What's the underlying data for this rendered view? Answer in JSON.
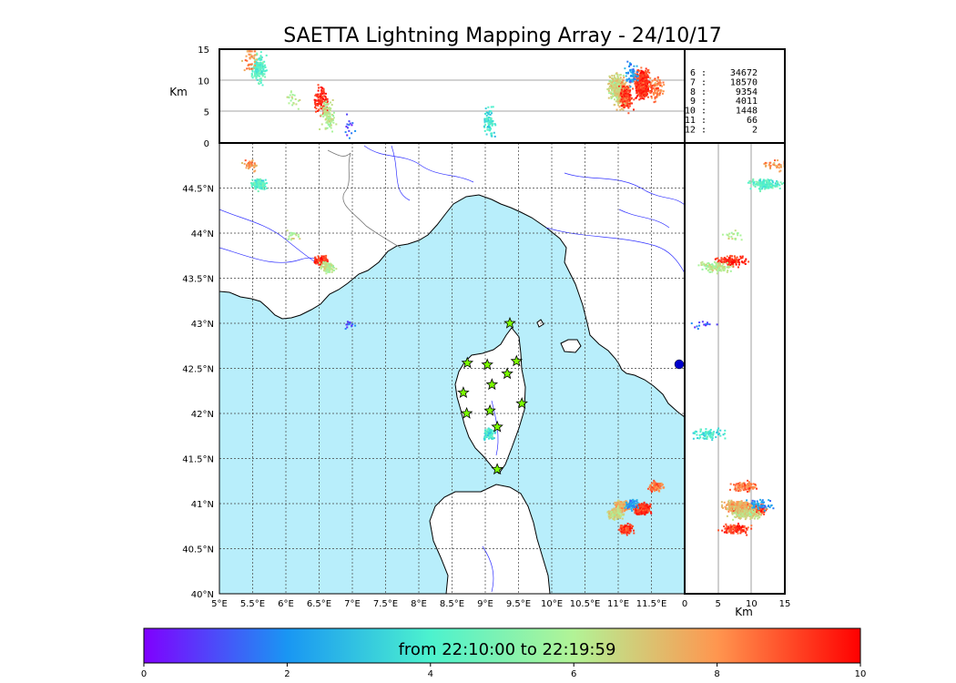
{
  "chart_data": {
    "type": "scatter",
    "title": "SAETTA Lightning Mapping Array - 24/10/17",
    "map": {
      "lon_ticks": [
        "5°E",
        "5.5°E",
        "6°E",
        "6.5°E",
        "7°E",
        "7.5°E",
        "8°E",
        "8.5°E",
        "9°E",
        "9.5°E",
        "10°E",
        "10.5°E",
        "11°E",
        "11.5°E"
      ],
      "lat_ticks": [
        "40°N",
        "40.5°N",
        "41°N",
        "41.5°N",
        "42°N",
        "42.5°N",
        "43°N",
        "43.5°N",
        "44°N",
        "44.5°N"
      ],
      "xlim": [
        5,
        12
      ],
      "ylim": [
        40,
        45
      ],
      "stations": [
        {
          "lon": 9.37,
          "lat": 43.0
        },
        {
          "lon": 8.73,
          "lat": 42.56
        },
        {
          "lon": 9.03,
          "lat": 42.54
        },
        {
          "lon": 9.47,
          "lat": 42.58
        },
        {
          "lon": 9.33,
          "lat": 42.44
        },
        {
          "lon": 9.1,
          "lat": 42.32
        },
        {
          "lon": 8.67,
          "lat": 42.23
        },
        {
          "lon": 9.55,
          "lat": 42.11
        },
        {
          "lon": 9.07,
          "lat": 42.03
        },
        {
          "lon": 8.72,
          "lat": 42.0
        },
        {
          "lon": 9.18,
          "lat": 41.85
        },
        {
          "lon": 9.18,
          "lat": 41.38
        }
      ]
    },
    "top_panel": {
      "ylabel": "Km",
      "yticks": [
        "15",
        "10",
        "5",
        "0"
      ],
      "ylim": [
        0,
        15
      ]
    },
    "side_panel": {
      "xlabel": "Km",
      "xticks": [
        "0",
        "5",
        "10",
        "15"
      ],
      "xlim": [
        0,
        15
      ]
    },
    "station_counts": [
      {
        "stations": "6",
        "count": "34672",
        "highlight": false
      },
      {
        "stations": "7",
        "count": "18570",
        "highlight": true
      },
      {
        "stations": "8",
        "count": "9354",
        "highlight": false
      },
      {
        "stations": "9",
        "count": "4011",
        "highlight": false
      },
      {
        "stations": "10",
        "count": "1448",
        "highlight": false
      },
      {
        "stations": "11",
        "count": "66",
        "highlight": false
      },
      {
        "stations": "12",
        "count": "2",
        "highlight": false
      }
    ],
    "colorbar": {
      "label": "from 22:10:00 to 22:19:59",
      "ticks": [
        "0",
        "2",
        "4",
        "6",
        "8",
        "10"
      ],
      "range": [
        0,
        10
      ]
    },
    "clusters": [
      {
        "lon": 5.58,
        "lat": 44.55,
        "alt": 12,
        "t": 4.3,
        "n": 170
      },
      {
        "lon": 5.45,
        "lat": 44.76,
        "alt": 13.5,
        "t": 7.8,
        "n": 45
      },
      {
        "lon": 6.07,
        "lat": 43.98,
        "alt": 7,
        "t": 6,
        "n": 20
      },
      {
        "lon": 6.52,
        "lat": 43.7,
        "alt": 7,
        "t": 9.5,
        "n": 110
      },
      {
        "lon": 6.62,
        "lat": 43.63,
        "alt": 4.5,
        "t": 6.2,
        "n": 110
      },
      {
        "lon": 6.95,
        "lat": 43.0,
        "alt": 3,
        "t": 1.2,
        "n": 15
      },
      {
        "lon": 9.05,
        "lat": 41.78,
        "alt": 3.5,
        "t": 3.8,
        "n": 80
      },
      {
        "lon": 11.35,
        "lat": 40.95,
        "alt": 9.5,
        "t": 9.3,
        "n": 500
      },
      {
        "lon": 11.05,
        "lat": 40.98,
        "alt": 8,
        "t": 7.5,
        "n": 320
      },
      {
        "lon": 10.95,
        "lat": 40.9,
        "alt": 9,
        "t": 6.5,
        "n": 200
      },
      {
        "lon": 11.1,
        "lat": 40.73,
        "alt": 7.5,
        "t": 9.2,
        "n": 120
      },
      {
        "lon": 11.55,
        "lat": 41.2,
        "alt": 9,
        "t": 8.5,
        "n": 90
      },
      {
        "lon": 11.2,
        "lat": 41.0,
        "alt": 11,
        "t": 2.2,
        "n": 60
      }
    ]
  }
}
